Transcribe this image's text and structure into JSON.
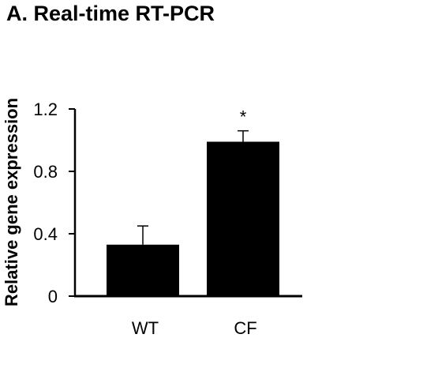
{
  "chart_data": {
    "type": "bar",
    "title": "A. Real-time RT-PCR",
    "xlabel": "",
    "ylabel": "Relative gene expression",
    "categories": [
      "WT",
      "CF"
    ],
    "values": [
      0.33,
      0.99
    ],
    "error": [
      0.12,
      0.07
    ],
    "annotations": [
      "",
      "*"
    ],
    "ylim": [
      0,
      1.2
    ],
    "yticks": [
      0,
      0.4,
      0.8,
      1.2
    ],
    "ytick_labels": [
      "0",
      "0.4",
      "0.8",
      "1.2"
    ],
    "grid": false,
    "legend": "none",
    "bar_color": "#000000"
  }
}
